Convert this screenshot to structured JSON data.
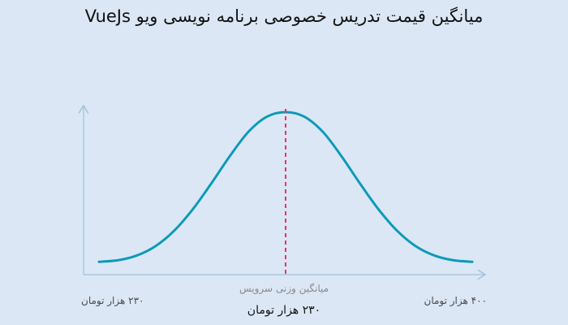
{
  "title": "میانگین قیمت تدریس خصوصی برنامه نویسی ویو VueJs",
  "chart_data": {
    "type": "line",
    "title": "میانگین قیمت تدریس خصوصی برنامه نویسی ویو VueJs",
    "xlabel": "",
    "ylabel": "",
    "grid": false,
    "legend": "none",
    "left_label": "۲۳۰ هزار تومان",
    "right_label": "۴۰۰ هزار تومان",
    "mean_label": "میانگین وزنی سرویس",
    "mean_value_label": "۲۳۰ هزار تومان",
    "mean_position": 0.5,
    "series": [
      {
        "x": [
          0,
          0.05,
          0.1,
          0.15,
          0.2,
          0.25,
          0.3,
          0.35,
          0.4,
          0.45,
          0.5,
          0.55,
          0.6,
          0.65,
          0.7,
          0.75,
          0.8,
          0.85,
          0.9,
          0.95,
          1
        ],
        "values": [
          0.02,
          0.03,
          0.06,
          0.12,
          0.22,
          0.36,
          0.53,
          0.71,
          0.87,
          0.97,
          1.0,
          0.97,
          0.87,
          0.71,
          0.53,
          0.36,
          0.22,
          0.12,
          0.06,
          0.03,
          0.02
        ]
      }
    ],
    "colors": {
      "curve": "#0e9ab8",
      "mean_line": "#e8336a",
      "axis": "#9fc3d6"
    }
  }
}
